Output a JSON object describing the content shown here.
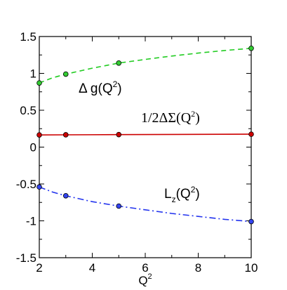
{
  "chart_data": {
    "type": "line",
    "title": "",
    "xlabel": "Q",
    "xlabel_sup": "2",
    "ylabel": "",
    "xlim": [
      2,
      10
    ],
    "ylim": [
      -1.5,
      1.5
    ],
    "x_ticks": [
      2,
      4,
      6,
      8,
      10
    ],
    "x_tick_labels": [
      "2",
      "4",
      "6",
      "8",
      "10"
    ],
    "y_ticks": [
      -1.5,
      -1,
      -0.5,
      0,
      0.5,
      1,
      1.5
    ],
    "y_tick_labels": [
      "-1.5",
      "-1",
      "-0.5",
      "0",
      "0.5",
      "1",
      "1.5"
    ],
    "grid": false,
    "series": [
      {
        "key": "delta_g",
        "label_parts": [
          "Δ g(Q",
          "2",
          ")"
        ],
        "color": "#22cc22",
        "marker_color": "#33cc33",
        "dash": "7,5",
        "x": [
          2,
          3,
          5,
          10
        ],
        "y": [
          0.87,
          0.99,
          1.14,
          1.34
        ],
        "curve_x": [
          2,
          2.5,
          3,
          4,
          5,
          6,
          7,
          8,
          9,
          10
        ],
        "curve_y": [
          0.87,
          0.94,
          0.99,
          1.07,
          1.14,
          1.19,
          1.235,
          1.275,
          1.31,
          1.34
        ]
      },
      {
        "key": "half_delta_sigma",
        "label_parts": [
          "1/2ΔΣ(Q",
          "2",
          ")"
        ],
        "color": "#cc0000",
        "marker_color": "#cc0000",
        "dash": "",
        "x": [
          2,
          3,
          5,
          10
        ],
        "y": [
          0.165,
          0.167,
          0.17,
          0.175
        ],
        "curve_x": [
          2,
          3,
          5,
          10
        ],
        "curve_y": [
          0.165,
          0.167,
          0.17,
          0.175
        ]
      },
      {
        "key": "lz",
        "label_parts": [
          "L",
          "z",
          "(Q",
          "2",
          ")"
        ],
        "color": "#2233ee",
        "marker_color": "#3344ee",
        "dash": "9,4,2,4",
        "x": [
          2,
          3,
          5,
          10
        ],
        "y": [
          -0.54,
          -0.66,
          -0.8,
          -1.01
        ],
        "curve_x": [
          2,
          2.5,
          3,
          4,
          5,
          6,
          7,
          8,
          9,
          10
        ],
        "curve_y": [
          -0.54,
          -0.61,
          -0.66,
          -0.74,
          -0.8,
          -0.85,
          -0.9,
          -0.94,
          -0.98,
          -1.01
        ]
      }
    ]
  }
}
